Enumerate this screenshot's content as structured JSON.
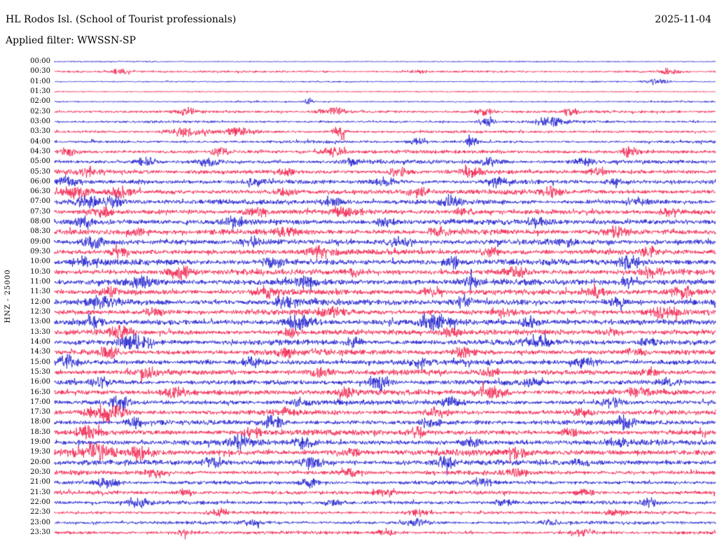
{
  "header": {
    "station_title": "HL Rodos Isl. (School of Tourist professionals)",
    "date": "2025-11-04",
    "filter_line": "Applied filter: WWSSN-SP"
  },
  "chart_data": {
    "type": "line",
    "subtype": "helicorder-seismogram",
    "title": "HL Rodos Isl. (School of Tourist professionals)",
    "date": "2025-11-04",
    "filter": "WWSSN-SP",
    "channel": "HNZ",
    "scale": 25000,
    "ylabel": "HNZ - 25000",
    "minutes_per_line": 30,
    "grid": false,
    "legend": false,
    "trace_colors": {
      "even_rows": "#1414cc",
      "odd_rows": "#f01745"
    },
    "rows": [
      {
        "label": "00:00",
        "amp": 1.2,
        "bursts": []
      },
      {
        "label": "00:30",
        "amp": 2.0,
        "bursts": [
          [
            0.1,
            0.01,
            4
          ],
          [
            0.55,
            0.008,
            3
          ],
          [
            0.93,
            0.01,
            5
          ]
        ]
      },
      {
        "label": "01:00",
        "amp": 1.3,
        "bursts": [
          [
            0.91,
            0.012,
            5
          ]
        ]
      },
      {
        "label": "01:30",
        "amp": 1.3,
        "bursts": []
      },
      {
        "label": "02:00",
        "amp": 1.5,
        "bursts": [
          [
            0.385,
            0.004,
            7
          ]
        ]
      },
      {
        "label": "02:30",
        "amp": 2.5,
        "bursts": [
          [
            0.2,
            0.01,
            5
          ],
          [
            0.42,
            0.015,
            6
          ],
          [
            0.65,
            0.01,
            6
          ],
          [
            0.78,
            0.008,
            5
          ]
        ]
      },
      {
        "label": "03:00",
        "amp": 2.2,
        "bursts": [
          [
            0.655,
            0.008,
            9
          ],
          [
            0.75,
            0.015,
            7
          ]
        ]
      },
      {
        "label": "03:30",
        "amp": 2.5,
        "bursts": [
          [
            0.2,
            0.02,
            7
          ],
          [
            0.28,
            0.015,
            6
          ],
          [
            0.43,
            0.008,
            8
          ]
        ]
      },
      {
        "label": "04:00",
        "amp": 2.6,
        "bursts": [
          [
            0.55,
            0.01,
            5
          ],
          [
            0.63,
            0.006,
            10
          ]
        ]
      },
      {
        "label": "04:30",
        "amp": 3.5,
        "bursts": [
          [
            0.02,
            0.008,
            6
          ],
          [
            0.25,
            0.01,
            6
          ],
          [
            0.42,
            0.012,
            7
          ],
          [
            0.87,
            0.008,
            7
          ]
        ]
      },
      {
        "label": "05:00",
        "amp": 3.5,
        "bursts": [
          [
            0.14,
            0.01,
            6
          ],
          [
            0.23,
            0.012,
            6
          ],
          [
            0.45,
            0.01,
            5
          ],
          [
            0.66,
            0.012,
            7
          ],
          [
            0.8,
            0.01,
            6
          ]
        ]
      },
      {
        "label": "05:30",
        "amp": 4.0,
        "bursts": [
          [
            0.05,
            0.01,
            6
          ],
          [
            0.35,
            0.01,
            5
          ],
          [
            0.52,
            0.012,
            6
          ],
          [
            0.63,
            0.01,
            7
          ],
          [
            0.82,
            0.01,
            6
          ]
        ]
      },
      {
        "label": "06:00",
        "amp": 4.0,
        "bursts": [
          [
            0.02,
            0.012,
            8
          ],
          [
            0.3,
            0.01,
            6
          ],
          [
            0.5,
            0.012,
            7
          ],
          [
            0.67,
            0.01,
            8
          ],
          [
            0.85,
            0.01,
            6
          ]
        ]
      },
      {
        "label": "06:30",
        "amp": 4.5,
        "bursts": [
          [
            0.03,
            0.015,
            8
          ],
          [
            0.1,
            0.01,
            7
          ],
          [
            0.35,
            0.01,
            6
          ],
          [
            0.55,
            0.012,
            7
          ],
          [
            0.75,
            0.01,
            6
          ]
        ]
      },
      {
        "label": "07:00",
        "amp": 4.5,
        "bursts": [
          [
            0.05,
            0.012,
            9
          ],
          [
            0.09,
            0.01,
            8
          ],
          [
            0.42,
            0.012,
            7
          ],
          [
            0.6,
            0.01,
            7
          ],
          [
            0.88,
            0.01,
            6
          ]
        ]
      },
      {
        "label": "07:30",
        "amp": 4.5,
        "bursts": [
          [
            0.07,
            0.012,
            7
          ],
          [
            0.3,
            0.01,
            6
          ],
          [
            0.44,
            0.015,
            8
          ],
          [
            0.62,
            0.01,
            6
          ],
          [
            0.93,
            0.01,
            6
          ]
        ]
      },
      {
        "label": "08:00",
        "amp": 5.0,
        "bursts": [
          [
            0.04,
            0.01,
            8
          ],
          [
            0.27,
            0.012,
            7
          ],
          [
            0.5,
            0.01,
            6
          ],
          [
            0.73,
            0.012,
            7
          ]
        ]
      },
      {
        "label": "08:30",
        "amp": 5.0,
        "bursts": [
          [
            0.12,
            0.01,
            7
          ],
          [
            0.35,
            0.012,
            8
          ],
          [
            0.58,
            0.01,
            6
          ],
          [
            0.85,
            0.012,
            7
          ]
        ]
      },
      {
        "label": "09:00",
        "amp": 5.0,
        "bursts": [
          [
            0.06,
            0.012,
            9
          ],
          [
            0.3,
            0.01,
            6
          ],
          [
            0.52,
            0.012,
            7
          ],
          [
            0.78,
            0.01,
            6
          ]
        ]
      },
      {
        "label": "09:30",
        "amp": 5.0,
        "bursts": [
          [
            0.1,
            0.01,
            7
          ],
          [
            0.4,
            0.015,
            8
          ],
          [
            0.66,
            0.01,
            6
          ],
          [
            0.9,
            0.01,
            6
          ]
        ]
      },
      {
        "label": "10:00",
        "amp": 5.5,
        "bursts": [
          [
            0.05,
            0.012,
            8
          ],
          [
            0.33,
            0.01,
            7
          ],
          [
            0.6,
            0.012,
            8
          ],
          [
            0.87,
            0.015,
            9
          ]
        ]
      },
      {
        "label": "10:30",
        "amp": 5.0,
        "bursts": [
          [
            0.19,
            0.012,
            11
          ],
          [
            0.45,
            0.01,
            6
          ],
          [
            0.7,
            0.012,
            7
          ],
          [
            0.9,
            0.01,
            7
          ]
        ]
      },
      {
        "label": "11:00",
        "amp": 5.5,
        "bursts": [
          [
            0.13,
            0.012,
            8
          ],
          [
            0.38,
            0.01,
            6
          ],
          [
            0.63,
            0.012,
            7
          ],
          [
            0.87,
            0.01,
            8
          ]
        ]
      },
      {
        "label": "11:30",
        "amp": 5.0,
        "bursts": [
          [
            0.08,
            0.01,
            7
          ],
          [
            0.32,
            0.012,
            7
          ],
          [
            0.57,
            0.01,
            6
          ],
          [
            0.82,
            0.012,
            7
          ],
          [
            0.95,
            0.012,
            8
          ]
        ]
      },
      {
        "label": "12:00",
        "amp": 5.5,
        "bursts": [
          [
            0.07,
            0.015,
            9
          ],
          [
            0.35,
            0.012,
            7
          ],
          [
            0.62,
            0.01,
            7
          ],
          [
            0.85,
            0.01,
            6
          ]
        ]
      },
      {
        "label": "12:30",
        "amp": 5.0,
        "bursts": [
          [
            0.15,
            0.01,
            7
          ],
          [
            0.42,
            0.012,
            8
          ],
          [
            0.68,
            0.01,
            6
          ],
          [
            0.92,
            0.015,
            8
          ]
        ]
      },
      {
        "label": "13:00",
        "amp": 5.5,
        "bursts": [
          [
            0.06,
            0.01,
            8
          ],
          [
            0.37,
            0.015,
            10
          ],
          [
            0.58,
            0.015,
            9
          ],
          [
            0.72,
            0.01,
            7
          ]
        ]
      },
      {
        "label": "13:30",
        "amp": 5.0,
        "bursts": [
          [
            0.1,
            0.012,
            8
          ],
          [
            0.36,
            0.01,
            6
          ],
          [
            0.6,
            0.012,
            7
          ],
          [
            0.84,
            0.01,
            6
          ]
        ]
      },
      {
        "label": "14:00",
        "amp": 5.0,
        "bursts": [
          [
            0.12,
            0.015,
            10
          ],
          [
            0.45,
            0.01,
            6
          ],
          [
            0.73,
            0.012,
            9
          ],
          [
            0.9,
            0.01,
            6
          ]
        ]
      },
      {
        "label": "14:30",
        "amp": 5.0,
        "bursts": [
          [
            0.08,
            0.012,
            8
          ],
          [
            0.35,
            0.01,
            7
          ],
          [
            0.62,
            0.012,
            7
          ],
          [
            0.88,
            0.01,
            6
          ]
        ]
      },
      {
        "label": "15:00",
        "amp": 5.0,
        "bursts": [
          [
            0.02,
            0.01,
            9
          ],
          [
            0.3,
            0.012,
            7
          ],
          [
            0.55,
            0.01,
            6
          ],
          [
            0.8,
            0.012,
            7
          ]
        ]
      },
      {
        "label": "15:30",
        "amp": 5.0,
        "bursts": [
          [
            0.14,
            0.01,
            7
          ],
          [
            0.4,
            0.012,
            7
          ],
          [
            0.66,
            0.01,
            6
          ],
          [
            0.9,
            0.01,
            6
          ]
        ]
      },
      {
        "label": "16:00",
        "amp": 4.5,
        "bursts": [
          [
            0.07,
            0.01,
            7
          ],
          [
            0.49,
            0.012,
            11
          ],
          [
            0.72,
            0.01,
            6
          ],
          [
            0.93,
            0.01,
            6
          ]
        ]
      },
      {
        "label": "16:30",
        "amp": 5.0,
        "bursts": [
          [
            0.18,
            0.012,
            8
          ],
          [
            0.44,
            0.01,
            6
          ],
          [
            0.66,
            0.015,
            11
          ],
          [
            0.88,
            0.01,
            6
          ]
        ]
      },
      {
        "label": "17:00",
        "amp": 4.5,
        "bursts": [
          [
            0.1,
            0.012,
            8
          ],
          [
            0.37,
            0.01,
            6
          ],
          [
            0.6,
            0.012,
            7
          ],
          [
            0.84,
            0.01,
            7
          ]
        ]
      },
      {
        "label": "17:30",
        "amp": 4.5,
        "bursts": [
          [
            0.08,
            0.02,
            13
          ],
          [
            0.35,
            0.01,
            6
          ],
          [
            0.58,
            0.012,
            7
          ],
          [
            0.8,
            0.01,
            6
          ]
        ]
      },
      {
        "label": "18:00",
        "amp": 4.5,
        "bursts": [
          [
            0.12,
            0.01,
            7
          ],
          [
            0.33,
            0.012,
            9
          ],
          [
            0.57,
            0.01,
            6
          ],
          [
            0.86,
            0.012,
            9
          ]
        ]
      },
      {
        "label": "18:30",
        "amp": 5.0,
        "bursts": [
          [
            0.05,
            0.012,
            8
          ],
          [
            0.3,
            0.01,
            7
          ],
          [
            0.55,
            0.012,
            7
          ],
          [
            0.78,
            0.01,
            6
          ]
        ]
      },
      {
        "label": "19:00",
        "amp": 5.0,
        "bursts": [
          [
            0.28,
            0.012,
            10
          ],
          [
            0.38,
            0.012,
            9
          ],
          [
            0.63,
            0.01,
            6
          ],
          [
            0.85,
            0.01,
            6
          ]
        ]
      },
      {
        "label": "19:30",
        "amp": 5.5,
        "bursts": [
          [
            0.06,
            0.02,
            10
          ],
          [
            0.13,
            0.015,
            9
          ],
          [
            0.45,
            0.01,
            6
          ],
          [
            0.7,
            0.012,
            7
          ]
        ]
      },
      {
        "label": "20:00",
        "amp": 5.0,
        "bursts": [
          [
            0.24,
            0.012,
            9
          ],
          [
            0.39,
            0.012,
            8
          ],
          [
            0.59,
            0.012,
            8
          ],
          [
            0.8,
            0.01,
            6
          ]
        ]
      },
      {
        "label": "20:30",
        "amp": 4.0,
        "bursts": [
          [
            0.15,
            0.01,
            6
          ],
          [
            0.45,
            0.012,
            6
          ],
          [
            0.7,
            0.01,
            5
          ]
        ]
      },
      {
        "label": "21:00",
        "amp": 3.5,
        "bursts": [
          [
            0.08,
            0.012,
            8
          ],
          [
            0.385,
            0.01,
            7
          ],
          [
            0.65,
            0.01,
            5
          ]
        ]
      },
      {
        "label": "21:30",
        "amp": 3.5,
        "bursts": [
          [
            0.2,
            0.01,
            5
          ],
          [
            0.5,
            0.012,
            6
          ],
          [
            0.8,
            0.01,
            5
          ]
        ]
      },
      {
        "label": "22:00",
        "amp": 3.5,
        "bursts": [
          [
            0.13,
            0.012,
            7
          ],
          [
            0.42,
            0.01,
            5
          ],
          [
            0.68,
            0.01,
            5
          ],
          [
            0.9,
            0.01,
            5
          ]
        ]
      },
      {
        "label": "22:30",
        "amp": 3.0,
        "bursts": [
          [
            0.25,
            0.01,
            5
          ],
          [
            0.55,
            0.012,
            5
          ],
          [
            0.85,
            0.01,
            5
          ]
        ]
      },
      {
        "label": "23:00",
        "amp": 3.0,
        "bursts": [
          [
            0.3,
            0.01,
            5
          ],
          [
            0.55,
            0.012,
            7
          ],
          [
            0.75,
            0.01,
            4
          ]
        ]
      },
      {
        "label": "23:30",
        "amp": 3.0,
        "bursts": [
          [
            0.2,
            0.01,
            5
          ],
          [
            0.5,
            0.01,
            4
          ],
          [
            0.8,
            0.012,
            5
          ]
        ]
      }
    ]
  }
}
